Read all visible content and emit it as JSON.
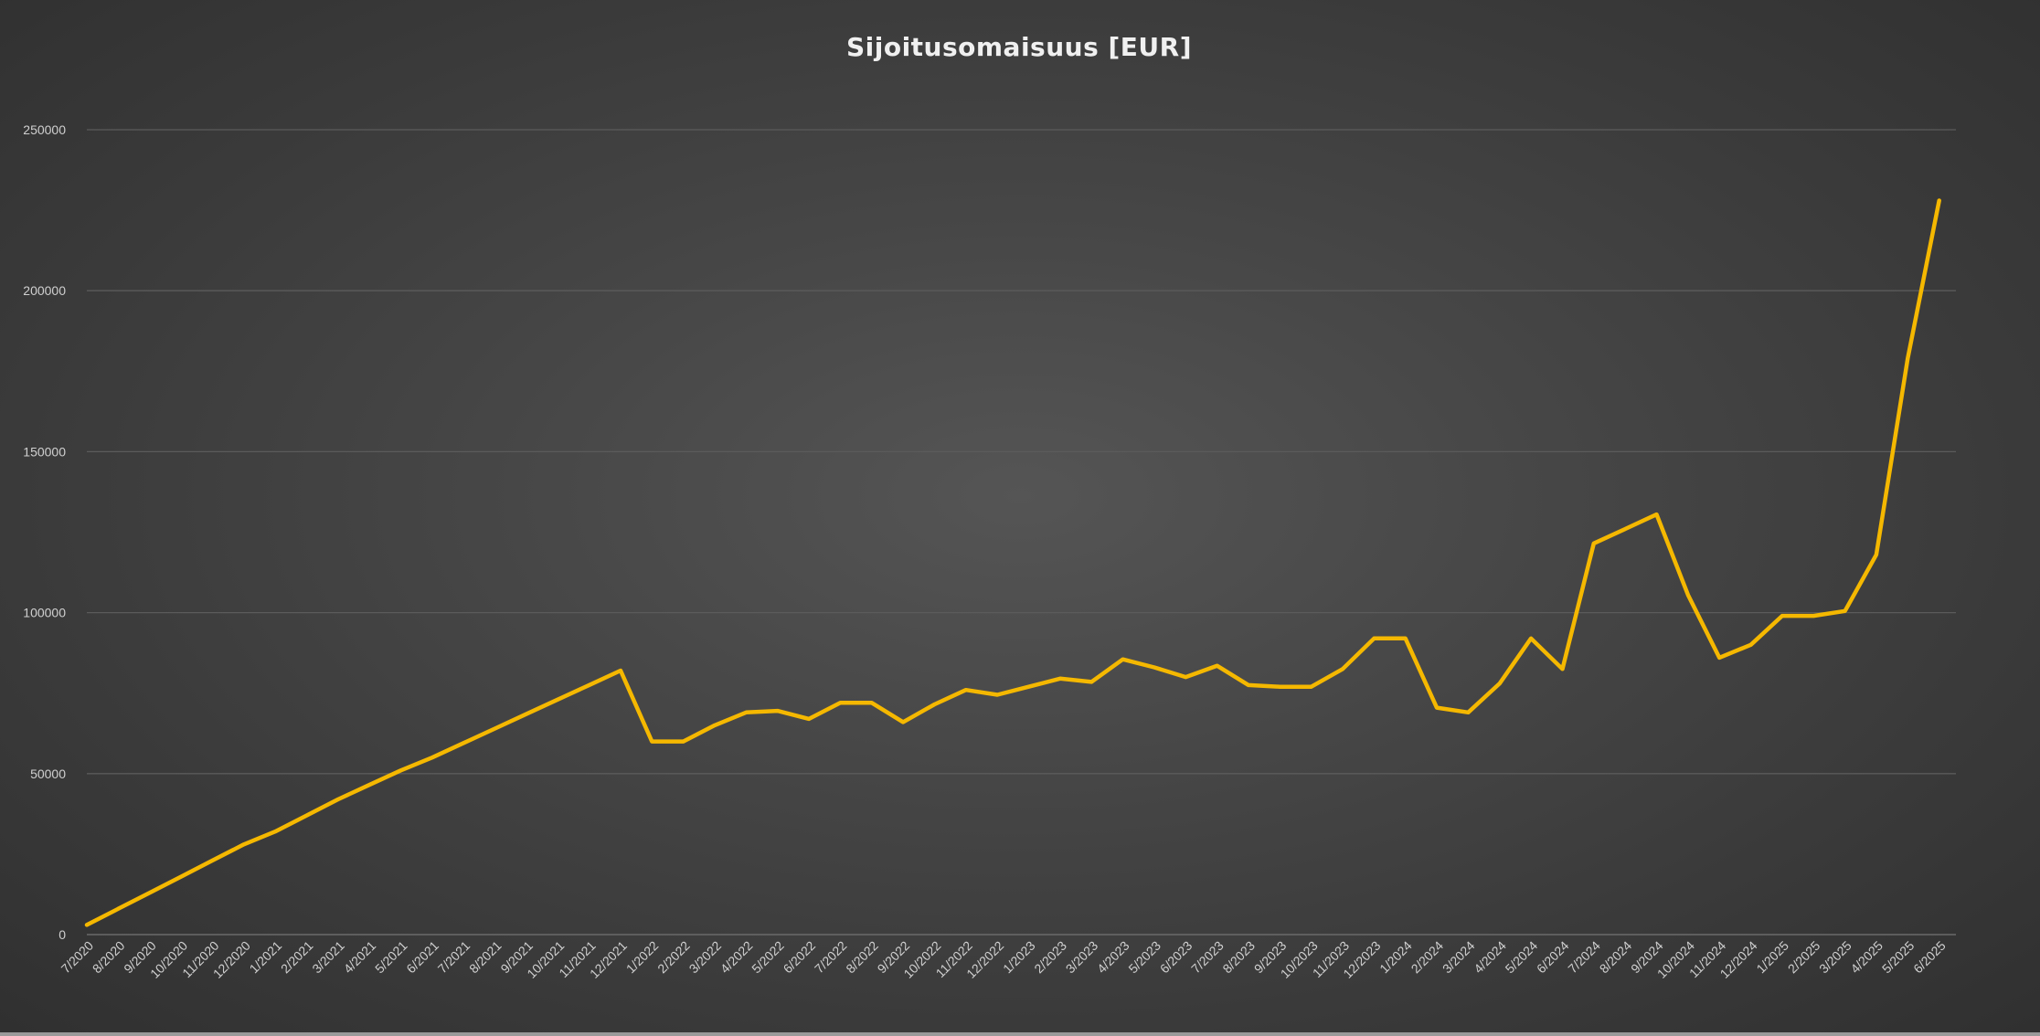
{
  "colors": {
    "series": "#F5B800",
    "grid": "#5b5b5b",
    "text": "#d0d0d0",
    "title": "#f0f0f0"
  },
  "chart_data": {
    "type": "line",
    "title": "Sijoitusomaisuus [EUR]",
    "xlabel": "",
    "ylabel": "",
    "ylim": [
      0,
      250000
    ],
    "yticks": [
      "0",
      "50000",
      "100000",
      "150000",
      "200000",
      "250000"
    ],
    "grid": true,
    "legend": "none",
    "categories": [
      "7/2020",
      "8/2020",
      "9/2020",
      "10/2020",
      "11/2020",
      "12/2020",
      "1/2021",
      "2/2021",
      "3/2021",
      "4/2021",
      "5/2021",
      "6/2021",
      "7/2021",
      "8/2021",
      "9/2021",
      "10/2021",
      "11/2021",
      "12/2021",
      "1/2022",
      "2/2022",
      "3/2022",
      "4/2022",
      "5/2022",
      "6/2022",
      "7/2022",
      "8/2022",
      "9/2022",
      "10/2022",
      "11/2022",
      "12/2022",
      "1/2023",
      "2/2023",
      "3/2023",
      "4/2023",
      "5/2023",
      "6/2023",
      "7/2023",
      "8/2023",
      "9/2023",
      "10/2023",
      "11/2023",
      "12/2023",
      "1/2024",
      "2/2024",
      "3/2024",
      "4/2024",
      "5/2024",
      "6/2024",
      "7/2024",
      "8/2024",
      "9/2024",
      "10/2024",
      "11/2024",
      "12/2024",
      "1/2025",
      "2/2025",
      "3/2025",
      "4/2025",
      "5/2025",
      "6/2025"
    ],
    "series": [
      {
        "values": [
          3000,
          8000,
          13000,
          18000,
          23000,
          28000,
          32000,
          37000,
          42000,
          46500,
          51000,
          55000,
          59500,
          64000,
          68500,
          73000,
          77500,
          82000,
          60000,
          60000,
          65000,
          69000,
          69500,
          67000,
          72000,
          72000,
          66000,
          71500,
          76000,
          74500,
          77000,
          79500,
          78500,
          85500,
          83000,
          80000,
          83500,
          77500,
          77000,
          77000,
          82500,
          92000,
          92000,
          70500,
          69000,
          78000,
          92000,
          82500,
          121500,
          126000,
          130500,
          105500,
          86000,
          90000,
          99000,
          99000,
          100500,
          118000,
          179000,
          228000
        ]
      }
    ]
  }
}
